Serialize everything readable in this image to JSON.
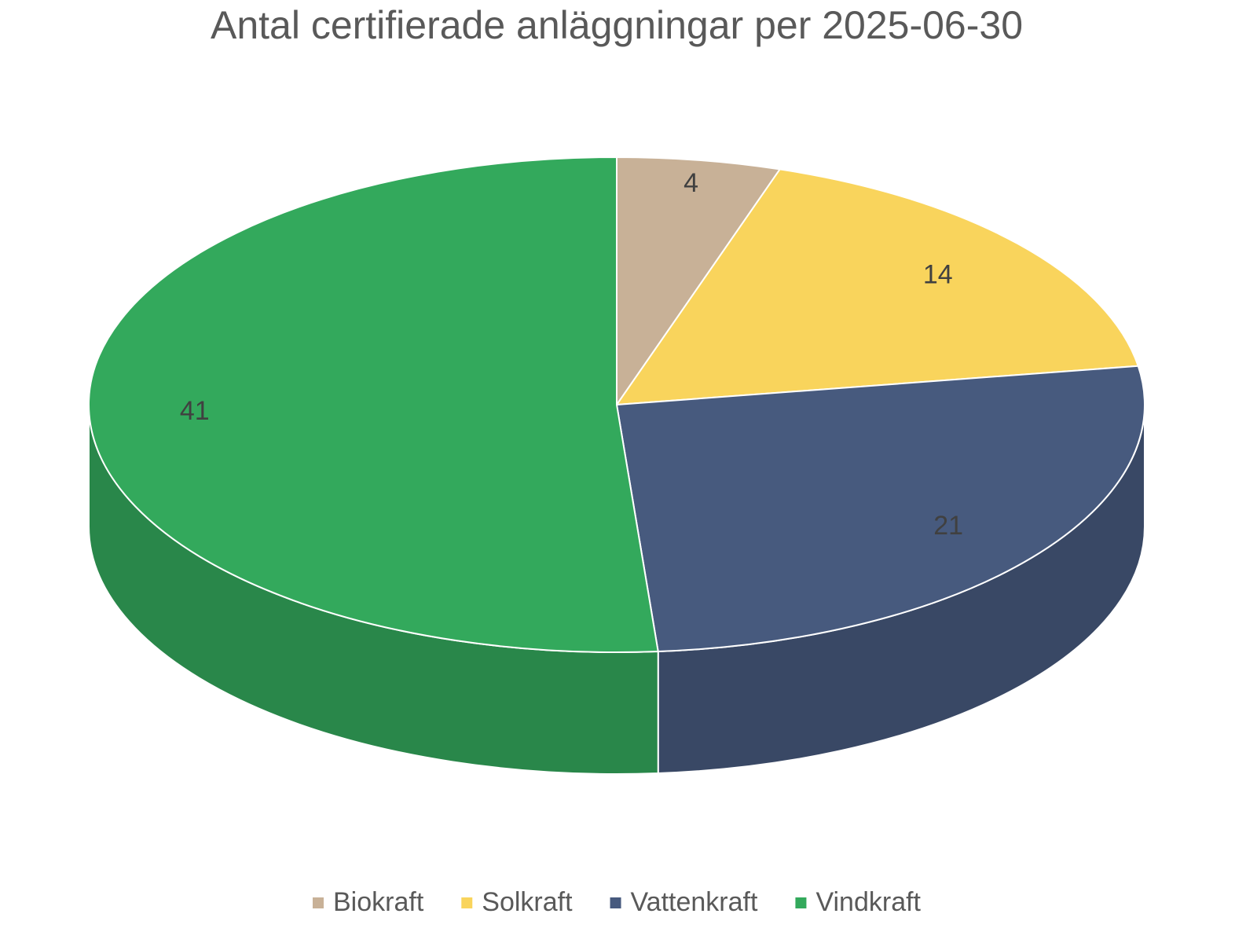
{
  "chart_data": {
    "type": "pie",
    "title": "Antal certifierade anläggningar per 2025-06-30",
    "categories": [
      "Biokraft",
      "Solkraft",
      "Vattenkraft",
      "Vindkraft"
    ],
    "values": [
      4,
      14,
      21,
      41
    ],
    "colors": [
      "#c8b197",
      "#f9d45c",
      "#475a7e",
      "#33a95c"
    ],
    "legend": "bottom"
  }
}
